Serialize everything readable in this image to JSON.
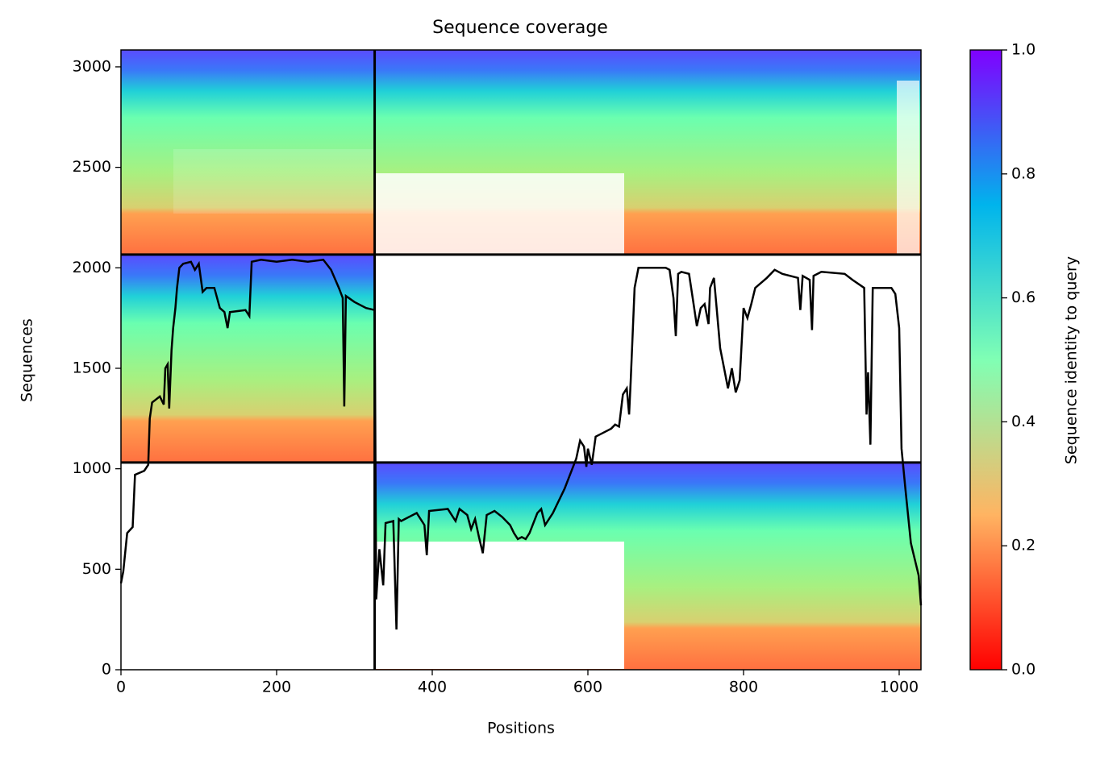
{
  "chart_data": {
    "type": "line",
    "title": "Sequence coverage",
    "xlabel": "Positions",
    "ylabel": "Sequences",
    "xlim": [
      0,
      1028
    ],
    "ylim": [
      0,
      3084
    ],
    "xticks": [
      0,
      200,
      400,
      600,
      800,
      1000
    ],
    "yticks": [
      0,
      500,
      1000,
      1500,
      2000,
      2500,
      3000
    ],
    "dividers": {
      "x": [
        326
      ],
      "y": [
        1031,
        2066
      ]
    },
    "colorbar": {
      "label": "Sequence identity to query",
      "lim": [
        0,
        1
      ],
      "ticks": [
        {
          "value": 0,
          "label": "0.0"
        },
        {
          "value": 0.2,
          "label": "0.2"
        },
        {
          "value": 0.4,
          "label": "0.4"
        },
        {
          "value": 0.6,
          "label": "0.6"
        },
        {
          "value": 0.8,
          "label": "0.8"
        },
        {
          "value": 1,
          "label": "1.0"
        }
      ]
    },
    "line": {
      "color": "#000000",
      "x": [
        0,
        3,
        8,
        15,
        18,
        30,
        35,
        37,
        40,
        50,
        55,
        57,
        60,
        62,
        65,
        67,
        70,
        72,
        75,
        80,
        90,
        95,
        100,
        105,
        110,
        120,
        127,
        133,
        137,
        140,
        160,
        165,
        168,
        180,
        200,
        220,
        240,
        260,
        270,
        280,
        285,
        287,
        289,
        300,
        315,
        326,
        328,
        332,
        337,
        340,
        350,
        354,
        357,
        360,
        370,
        380,
        390,
        393,
        396,
        420,
        430,
        435,
        445,
        450,
        455,
        460,
        465,
        470,
        480,
        490,
        500,
        505,
        510,
        515,
        520,
        525,
        535,
        540,
        545,
        555,
        560,
        570,
        580,
        585,
        590,
        595,
        598,
        600,
        605,
        610,
        620,
        630,
        635,
        640,
        645,
        650,
        653,
        655,
        660,
        665,
        700,
        705,
        710,
        713,
        716,
        720,
        730,
        735,
        740,
        745,
        750,
        755,
        757,
        762,
        765,
        770,
        775,
        780,
        785,
        790,
        795,
        800,
        805,
        810,
        815,
        830,
        840,
        850,
        860,
        870,
        873,
        876,
        885,
        888,
        890,
        900,
        930,
        940,
        955,
        958,
        960,
        963,
        966,
        990,
        995,
        1000,
        1003,
        1008,
        1015,
        1025,
        1028
      ],
      "y": [
        430,
        490,
        680,
        710,
        970,
        990,
        1020,
        1250,
        1330,
        1360,
        1320,
        1500,
        1520,
        1300,
        1590,
        1700,
        1800,
        1900,
        2000,
        2020,
        2030,
        1990,
        2020,
        1880,
        1900,
        1900,
        1800,
        1780,
        1700,
        1780,
        1790,
        1760,
        2030,
        2040,
        2030,
        2040,
        2030,
        2040,
        1990,
        1900,
        1850,
        1310,
        1860,
        1830,
        1800,
        1790,
        350,
        600,
        420,
        730,
        740,
        200,
        750,
        740,
        760,
        780,
        720,
        570,
        790,
        800,
        740,
        800,
        770,
        700,
        750,
        660,
        580,
        770,
        790,
        760,
        720,
        680,
        650,
        660,
        650,
        680,
        780,
        800,
        720,
        780,
        820,
        900,
        1000,
        1050,
        1140,
        1110,
        1010,
        1100,
        1020,
        1160,
        1180,
        1200,
        1220,
        1210,
        1370,
        1400,
        1270,
        1440,
        1900,
        2000,
        2000,
        1990,
        1850,
        1660,
        1970,
        1980,
        1970,
        1840,
        1710,
        1800,
        1820,
        1720,
        1900,
        1950,
        1820,
        1600,
        1500,
        1400,
        1500,
        1380,
        1440,
        1800,
        1750,
        1820,
        1900,
        1950,
        1990,
        1970,
        1960,
        1950,
        1790,
        1960,
        1940,
        1690,
        1960,
        1980,
        1970,
        1940,
        1900,
        1270,
        1480,
        1120,
        1900,
        1900,
        1870,
        1700,
        1100,
        900,
        630,
        470,
        320
      ]
    }
  }
}
